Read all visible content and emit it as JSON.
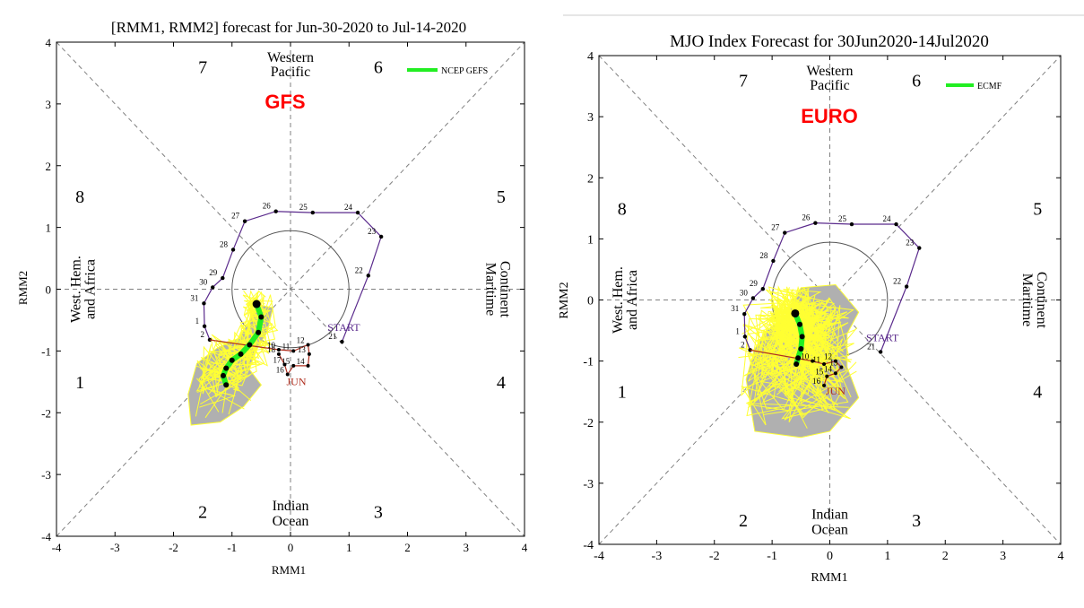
{
  "panels": [
    {
      "id": "gfs",
      "title": "[RMM1, RMM2] forecast for Jun-30-2020 to Jul-14-2020",
      "model_label": "GFS",
      "legend_label": "NCEP GEFS",
      "xlabel": "RMM1",
      "ylabel": "RMM2",
      "xticks": [
        "-4",
        "-3",
        "-2",
        "-1",
        "0",
        "1",
        "2",
        "3",
        "4"
      ],
      "yticks": [
        "-4",
        "-3",
        "-2",
        "-1",
        "0",
        "1",
        "2",
        "3",
        "4"
      ],
      "phase_numbers": [
        "1",
        "2",
        "3",
        "4",
        "5",
        "6",
        "7",
        "8"
      ],
      "region_top": [
        "Western",
        "Pacific"
      ],
      "region_bottom": [
        "Indian",
        "Ocean"
      ],
      "region_left": [
        "West. Hem.",
        "and Africa"
      ],
      "region_right": [
        "Maritime",
        "Continent"
      ],
      "start_label": "START",
      "jun_label": "JUN"
    },
    {
      "id": "euro",
      "title": "MJO Index Forecast for 30Jun2020-14Jul2020",
      "model_label": "EURO",
      "legend_label": "ECMF",
      "xlabel": "RMM1",
      "ylabel": "RMM2",
      "xticks": [
        "-4",
        "-3",
        "-2",
        "-1",
        "0",
        "1",
        "2",
        "3",
        "4"
      ],
      "yticks": [
        "-4",
        "-3",
        "-2",
        "-1",
        "0",
        "1",
        "2",
        "3",
        "4"
      ],
      "phase_numbers": [
        "1",
        "2",
        "3",
        "4",
        "5",
        "6",
        "7",
        "8"
      ],
      "region_top": [
        "Western",
        "Pacific"
      ],
      "region_bottom": [
        "Indian",
        "Ocean"
      ],
      "region_left": [
        "West. Hem.",
        "and Africa"
      ],
      "region_right": [
        "Maritime",
        "Continent"
      ],
      "start_label": "START",
      "jun_label": "JUN"
    }
  ],
  "colors": {
    "observed_track": "#5a2a8c",
    "june_track": "#b03020",
    "ensemble_members": "#ffff33",
    "ensemble_spread": "#b0b0b0",
    "ensemble_mean": "#22ee22",
    "model_label": "#ff0000",
    "phase_divider": "#808080"
  },
  "chart_data": [
    {
      "type": "scatter",
      "title": "[RMM1, RMM2] forecast for Jun-30-2020 to Jul-14-2020",
      "xlabel": "RMM1",
      "ylabel": "RMM2",
      "xlim": [
        -4,
        4
      ],
      "ylim": [
        -4,
        4
      ],
      "observed": {
        "labels": [
          "START",
          "21",
          "22",
          "23",
          "24",
          "25",
          "26",
          "27",
          "28",
          "29",
          "30",
          "31",
          "1",
          "2"
        ],
        "x": [
          0.88,
          0.88,
          1.33,
          1.55,
          1.15,
          0.38,
          -0.25,
          -0.78,
          -0.98,
          -1.16,
          -1.33,
          -1.48,
          -1.47,
          -1.38
        ],
        "y": [
          -0.85,
          -0.85,
          0.22,
          0.85,
          1.24,
          1.24,
          1.26,
          1.1,
          0.64,
          0.18,
          0.03,
          -0.23,
          -0.6,
          -0.82
        ]
      },
      "june_track": {
        "labels": [
          "10",
          "11",
          "12",
          "13",
          "14",
          "15",
          "16",
          "17",
          "18"
        ],
        "x": [
          -0.2,
          0.05,
          0.3,
          0.32,
          0.3,
          0.05,
          -0.05,
          -0.1,
          -0.2
        ],
        "y": [
          -0.98,
          -1.0,
          -0.9,
          -1.05,
          -1.24,
          -1.24,
          -1.38,
          -1.22,
          -1.05
        ]
      },
      "ensemble_mean": {
        "x": [
          -0.58,
          -0.5,
          -0.55,
          -0.7,
          -0.85,
          -1.0,
          -1.1,
          -1.15,
          -1.1
        ],
        "y": [
          -0.24,
          -0.45,
          -0.7,
          -0.9,
          -1.05,
          -1.15,
          -1.28,
          -1.4,
          -1.55
        ]
      }
    },
    {
      "type": "scatter",
      "title": "MJO Index Forecast for 30Jun2020-14Jul2020",
      "xlabel": "RMM1",
      "ylabel": "RMM2",
      "xlim": [
        -4,
        4
      ],
      "ylim": [
        -4,
        4
      ],
      "observed": {
        "labels": [
          "START",
          "21",
          "22",
          "23",
          "24",
          "25",
          "26",
          "27",
          "28",
          "29",
          "30",
          "31",
          "1",
          "2"
        ],
        "x": [
          0.88,
          0.88,
          1.33,
          1.55,
          1.15,
          0.38,
          -0.25,
          -0.78,
          -0.98,
          -1.16,
          -1.33,
          -1.48,
          -1.47,
          -1.38
        ],
        "y": [
          -0.85,
          -0.85,
          0.22,
          0.85,
          1.24,
          1.24,
          1.26,
          1.1,
          0.64,
          0.18,
          0.03,
          -0.23,
          -0.6,
          -0.82
        ]
      },
      "june_track": {
        "labels": [
          "10",
          "11",
          "12",
          "13",
          "14",
          "15",
          "16"
        ],
        "x": [
          -0.3,
          -0.1,
          0.1,
          0.2,
          0.1,
          -0.05,
          -0.1
        ],
        "y": [
          -1.0,
          -1.05,
          -1.0,
          -1.1,
          -1.2,
          -1.25,
          -1.4
        ]
      },
      "ensemble_mean": {
        "x": [
          -0.6,
          -0.52,
          -0.48,
          -0.5,
          -0.55,
          -0.58
        ],
        "y": [
          -0.22,
          -0.4,
          -0.6,
          -0.8,
          -0.95,
          -1.05
        ]
      }
    }
  ]
}
